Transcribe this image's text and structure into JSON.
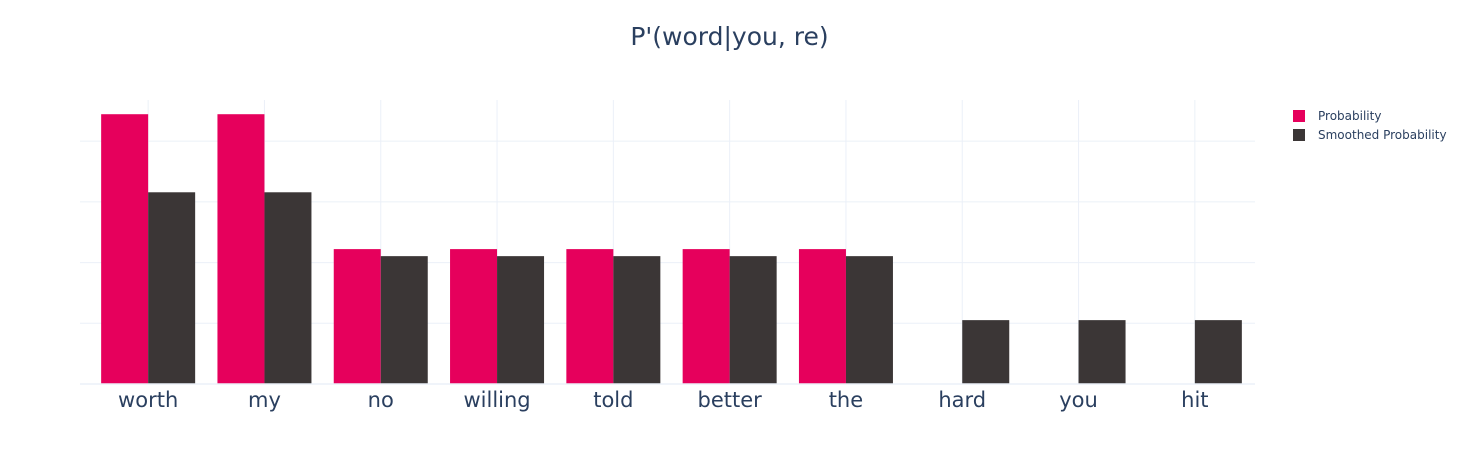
{
  "chart_data": {
    "type": "bar",
    "title": "P'(word|you, re)",
    "xlabel": "",
    "ylabel": "",
    "categories": [
      "worth",
      "my",
      "no",
      "willing",
      "told",
      "better",
      "the",
      "hard",
      "you",
      "hit"
    ],
    "series": [
      {
        "name": "Probability",
        "color": "#e6005c",
        "values": [
          0.2222,
          0.2222,
          0.1111,
          0.1111,
          0.1111,
          0.1111,
          0.1111,
          0,
          0,
          0
        ]
      },
      {
        "name": "Smoothed Probability",
        "color": "#3b3636",
        "values": [
          0.1579,
          0.1579,
          0.1053,
          0.1053,
          0.1053,
          0.1053,
          0.1053,
          0.0526,
          0.0526,
          0.0526
        ]
      }
    ],
    "ylim": [
      0,
      0.2339
    ],
    "yticks": [
      0.05,
      0.1,
      0.15,
      0.2
    ],
    "show_y_tick_labels": false,
    "grid": true,
    "legend_position": "top-right"
  }
}
